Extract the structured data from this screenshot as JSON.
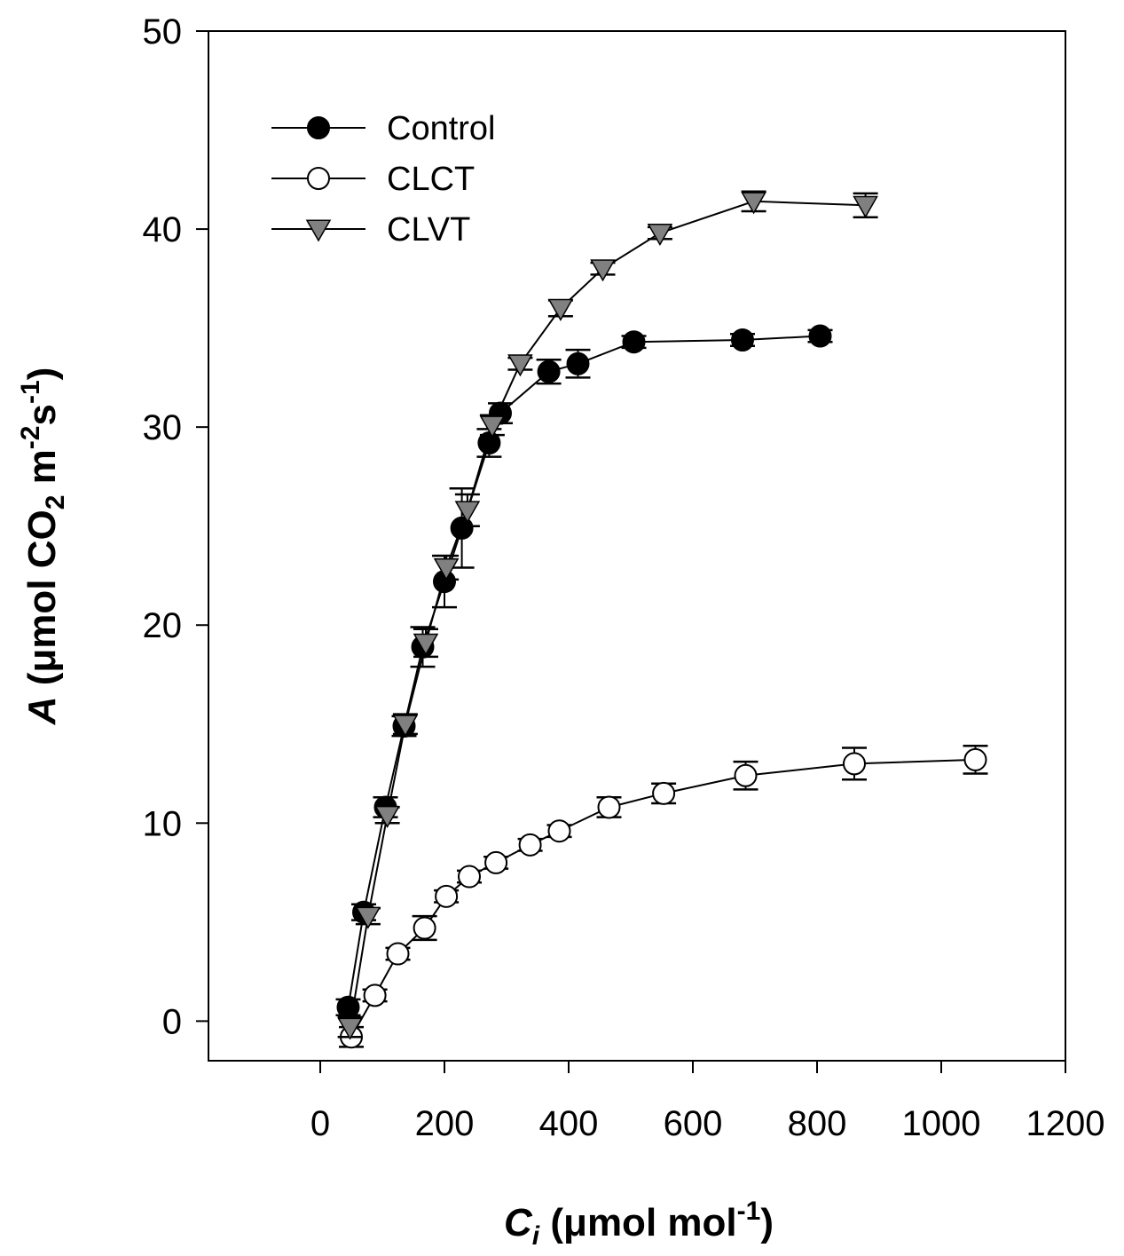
{
  "chart_data": {
    "type": "scatter",
    "x_axis": {
      "label_main": "C",
      "label_sub": "i",
      "label_rest": " (μmol mol",
      "label_sup": "-1",
      "label_end": ")",
      "range": [
        -180,
        1200
      ],
      "ticks": [
        0,
        200,
        400,
        600,
        800,
        1000,
        1200
      ]
    },
    "y_axis": {
      "label_main": "A",
      "label_part1": " (μmol CO",
      "label_sub": "2",
      "label_part2": " m",
      "label_sup1": "-2",
      "label_part3": "s",
      "label_sup2": "-1",
      "label_end": ")",
      "range": [
        -2,
        50
      ],
      "ticks": [
        0,
        10,
        20,
        30,
        40,
        50
      ]
    },
    "grid": false,
    "legend_position": "top-left",
    "series": [
      {
        "name": "Control",
        "marker": "circle-filled",
        "color": "#000000",
        "points": [
          {
            "x": 45,
            "y": 0.7,
            "err": 0.4
          },
          {
            "x": 70,
            "y": 5.5,
            "err": 0.4
          },
          {
            "x": 105,
            "y": 10.8,
            "err": 0.5
          },
          {
            "x": 135,
            "y": 14.9,
            "err": 0.5
          },
          {
            "x": 165,
            "y": 18.9,
            "err": 1.0
          },
          {
            "x": 200,
            "y": 22.2,
            "err": 1.3
          },
          {
            "x": 228,
            "y": 24.9,
            "err": 2.0
          },
          {
            "x": 272,
            "y": 29.2,
            "err": 0.7
          },
          {
            "x": 290,
            "y": 30.7,
            "err": 0.5
          },
          {
            "x": 368,
            "y": 32.8,
            "err": 0.6
          },
          {
            "x": 415,
            "y": 33.2,
            "err": 0.7
          },
          {
            "x": 505,
            "y": 34.3,
            "err": 0.3
          },
          {
            "x": 680,
            "y": 34.4,
            "err": 0.3
          },
          {
            "x": 805,
            "y": 34.6,
            "err": 0.3
          }
        ]
      },
      {
        "name": "CLCT",
        "marker": "circle-open",
        "color": "#000000",
        "points": [
          {
            "x": 50,
            "y": -0.8,
            "err": 0.5
          },
          {
            "x": 88,
            "y": 1.3,
            "err": 0.3
          },
          {
            "x": 125,
            "y": 3.4,
            "err": 0.3
          },
          {
            "x": 168,
            "y": 4.7,
            "err": 0.6
          },
          {
            "x": 203,
            "y": 6.3,
            "err": 0.3
          },
          {
            "x": 240,
            "y": 7.3,
            "err": 0.3
          },
          {
            "x": 283,
            "y": 8.0,
            "err": 0.3
          },
          {
            "x": 338,
            "y": 8.9,
            "err": 0.3
          },
          {
            "x": 385,
            "y": 9.6,
            "err": 0.3
          },
          {
            "x": 465,
            "y": 10.8,
            "err": 0.5
          },
          {
            "x": 553,
            "y": 11.5,
            "err": 0.5
          },
          {
            "x": 685,
            "y": 12.4,
            "err": 0.7
          },
          {
            "x": 860,
            "y": 13.0,
            "err": 0.8
          },
          {
            "x": 1055,
            "y": 13.2,
            "err": 0.7
          }
        ]
      },
      {
        "name": "CLVT",
        "marker": "triangle-down",
        "color": "#808080",
        "points": [
          {
            "x": 48,
            "y": -0.3,
            "err": 0.5
          },
          {
            "x": 77,
            "y": 5.3,
            "err": 0.4
          },
          {
            "x": 108,
            "y": 10.4,
            "err": 0.4
          },
          {
            "x": 137,
            "y": 15.0,
            "err": 0.5
          },
          {
            "x": 170,
            "y": 19.1,
            "err": 0.7
          },
          {
            "x": 203,
            "y": 22.9,
            "err": 0.6
          },
          {
            "x": 237,
            "y": 25.8,
            "err": 0.8
          },
          {
            "x": 277,
            "y": 30.1,
            "err": 0.5
          },
          {
            "x": 322,
            "y": 33.2,
            "err": 0.3
          },
          {
            "x": 387,
            "y": 36.0,
            "err": 0.4
          },
          {
            "x": 455,
            "y": 38.0,
            "err": 0.3
          },
          {
            "x": 547,
            "y": 39.8,
            "err": 0.3
          },
          {
            "x": 698,
            "y": 41.4,
            "err": 0.5
          },
          {
            "x": 878,
            "y": 41.2,
            "err": 0.6
          }
        ]
      }
    ]
  }
}
